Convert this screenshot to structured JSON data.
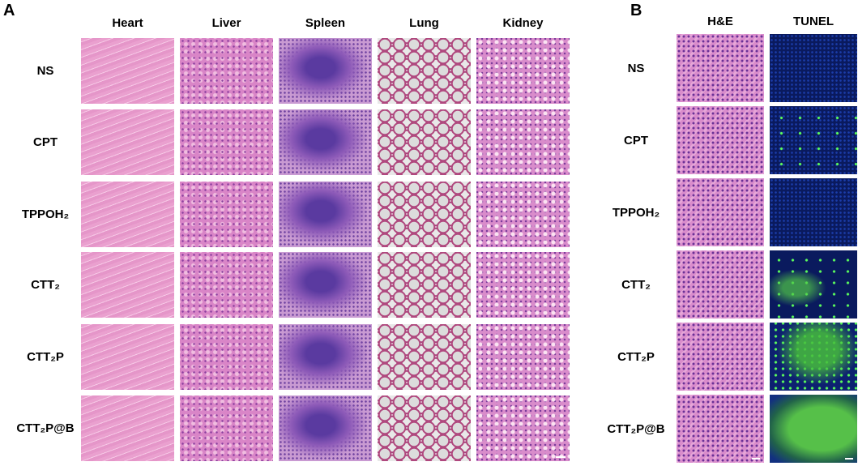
{
  "panel_a": {
    "label": "A",
    "columns": [
      "Heart",
      "Liver",
      "Spleen",
      "Lung",
      "Kidney"
    ],
    "rows": [
      "NS",
      "CPT",
      "TPPOH₂",
      "CTT₂",
      "CTT₂P",
      "CTT₂P@B"
    ]
  },
  "panel_b": {
    "label": "B",
    "columns": [
      "H&E",
      "TUNEL"
    ],
    "rows": [
      "NS",
      "CPT",
      "TPPOH₂",
      "CTT₂",
      "CTT₂P",
      "CTT₂P@B"
    ]
  }
}
